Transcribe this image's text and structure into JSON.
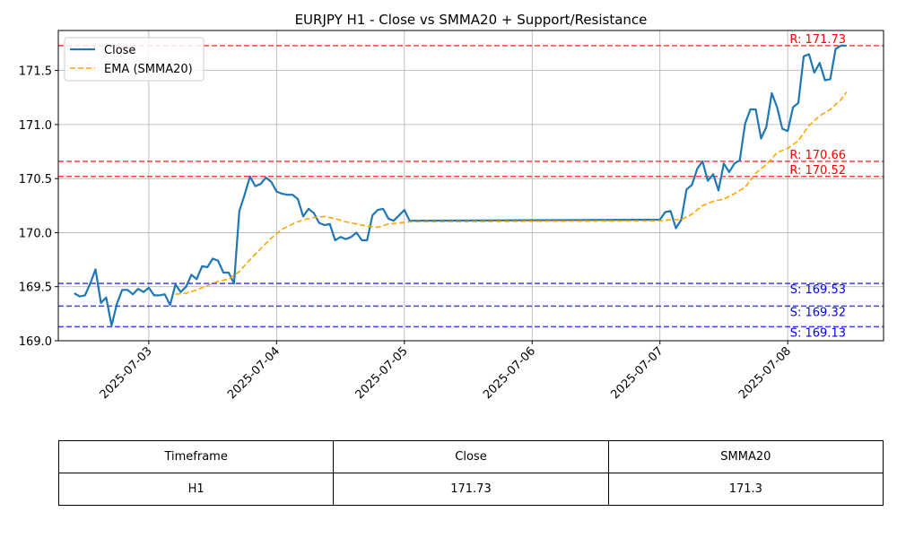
{
  "chart_data": {
    "type": "line",
    "title": "EURJPY H1 - Close vs SMMA20 + Support/Resistance",
    "xlabel": "",
    "ylabel": "",
    "x_ticks": [
      "2025-07-03",
      "2025-07-04",
      "2025-07-05",
      "2025-07-06",
      "2025-07-07",
      "2025-07-08"
    ],
    "y_ticks": [
      "169.0",
      "169.5",
      "170.0",
      "170.5",
      "171.0",
      "171.5"
    ],
    "ylim": [
      169.0,
      171.87
    ],
    "xlim": [
      "2025-07-02 07:00",
      "2025-07-08 18:00"
    ],
    "grid": true,
    "legend_position": "upper-left",
    "series": [
      {
        "name": "Close",
        "color": "#1f77b4",
        "style": "solid",
        "points": [
          [
            "2025-07-02 10:00",
            169.44
          ],
          [
            "2025-07-02 11:00",
            169.41
          ],
          [
            "2025-07-02 12:00",
            169.42
          ],
          [
            "2025-07-02 13:00",
            169.53
          ],
          [
            "2025-07-02 14:00",
            169.66
          ],
          [
            "2025-07-02 15:00",
            169.35
          ],
          [
            "2025-07-02 16:00",
            169.4
          ],
          [
            "2025-07-02 17:00",
            169.14
          ],
          [
            "2025-07-02 18:00",
            169.34
          ],
          [
            "2025-07-02 19:00",
            169.47
          ],
          [
            "2025-07-02 20:00",
            169.47
          ],
          [
            "2025-07-02 21:00",
            169.43
          ],
          [
            "2025-07-02 22:00",
            169.48
          ],
          [
            "2025-07-02 23:00",
            169.45
          ],
          [
            "2025-07-03 00:00",
            169.49
          ],
          [
            "2025-07-03 01:00",
            169.42
          ],
          [
            "2025-07-03 02:00",
            169.42
          ],
          [
            "2025-07-03 03:00",
            169.43
          ],
          [
            "2025-07-03 04:00",
            169.33
          ],
          [
            "2025-07-03 05:00",
            169.52
          ],
          [
            "2025-07-03 06:00",
            169.45
          ],
          [
            "2025-07-03 07:00",
            169.5
          ],
          [
            "2025-07-03 08:00",
            169.61
          ],
          [
            "2025-07-03 09:00",
            169.57
          ],
          [
            "2025-07-03 10:00",
            169.69
          ],
          [
            "2025-07-03 11:00",
            169.68
          ],
          [
            "2025-07-03 12:00",
            169.76
          ],
          [
            "2025-07-03 13:00",
            169.74
          ],
          [
            "2025-07-03 14:00",
            169.63
          ],
          [
            "2025-07-03 15:00",
            169.63
          ],
          [
            "2025-07-03 16:00",
            169.53
          ],
          [
            "2025-07-03 17:00",
            170.2
          ],
          [
            "2025-07-03 18:00",
            170.35
          ],
          [
            "2025-07-03 19:00",
            170.52
          ],
          [
            "2025-07-03 20:00",
            170.43
          ],
          [
            "2025-07-03 21:00",
            170.45
          ],
          [
            "2025-07-03 22:00",
            170.51
          ],
          [
            "2025-07-03 23:00",
            170.47
          ],
          [
            "2025-07-04 00:00",
            170.38
          ],
          [
            "2025-07-04 01:00",
            170.36
          ],
          [
            "2025-07-04 02:00",
            170.35
          ],
          [
            "2025-07-04 03:00",
            170.35
          ],
          [
            "2025-07-04 04:00",
            170.31
          ],
          [
            "2025-07-04 05:00",
            170.15
          ],
          [
            "2025-07-04 06:00",
            170.22
          ],
          [
            "2025-07-04 07:00",
            170.18
          ],
          [
            "2025-07-04 08:00",
            170.09
          ],
          [
            "2025-07-04 09:00",
            170.07
          ],
          [
            "2025-07-04 10:00",
            170.08
          ],
          [
            "2025-07-04 11:00",
            169.93
          ],
          [
            "2025-07-04 12:00",
            169.96
          ],
          [
            "2025-07-04 13:00",
            169.94
          ],
          [
            "2025-07-04 14:00",
            169.96
          ],
          [
            "2025-07-04 15:00",
            170.0
          ],
          [
            "2025-07-04 16:00",
            169.93
          ],
          [
            "2025-07-04 17:00",
            169.93
          ],
          [
            "2025-07-04 18:00",
            170.16
          ],
          [
            "2025-07-04 19:00",
            170.21
          ],
          [
            "2025-07-04 20:00",
            170.22
          ],
          [
            "2025-07-04 21:00",
            170.13
          ],
          [
            "2025-07-04 22:00",
            170.11
          ],
          [
            "2025-07-04 23:00",
            170.16
          ],
          [
            "2025-07-05 00:00",
            170.21
          ],
          [
            "2025-07-05 01:00",
            170.11
          ],
          [
            "2025-07-07 00:00",
            170.12
          ],
          [
            "2025-07-07 01:00",
            170.19
          ],
          [
            "2025-07-07 02:00",
            170.2
          ],
          [
            "2025-07-07 03:00",
            170.04
          ],
          [
            "2025-07-07 04:00",
            170.12
          ],
          [
            "2025-07-07 05:00",
            170.4
          ],
          [
            "2025-07-07 06:00",
            170.44
          ],
          [
            "2025-07-07 07:00",
            170.59
          ],
          [
            "2025-07-07 08:00",
            170.66
          ],
          [
            "2025-07-07 09:00",
            170.48
          ],
          [
            "2025-07-07 10:00",
            170.54
          ],
          [
            "2025-07-07 11:00",
            170.39
          ],
          [
            "2025-07-07 12:00",
            170.64
          ],
          [
            "2025-07-07 13:00",
            170.56
          ],
          [
            "2025-07-07 14:00",
            170.64
          ],
          [
            "2025-07-07 15:00",
            170.67
          ],
          [
            "2025-07-07 16:00",
            171.01
          ],
          [
            "2025-07-07 17:00",
            171.14
          ],
          [
            "2025-07-07 18:00",
            171.14
          ],
          [
            "2025-07-07 19:00",
            170.87
          ],
          [
            "2025-07-07 20:00",
            170.98
          ],
          [
            "2025-07-07 21:00",
            171.29
          ],
          [
            "2025-07-07 22:00",
            171.16
          ],
          [
            "2025-07-07 23:00",
            170.96
          ],
          [
            "2025-07-08 00:00",
            170.94
          ],
          [
            "2025-07-08 01:00",
            171.16
          ],
          [
            "2025-07-08 02:00",
            171.2
          ],
          [
            "2025-07-08 03:00",
            171.63
          ],
          [
            "2025-07-08 04:00",
            171.65
          ],
          [
            "2025-07-08 05:00",
            171.48
          ],
          [
            "2025-07-08 06:00",
            171.57
          ],
          [
            "2025-07-08 07:00",
            171.41
          ],
          [
            "2025-07-08 08:00",
            171.42
          ],
          [
            "2025-07-08 09:00",
            171.7
          ],
          [
            "2025-07-08 10:00",
            171.73
          ],
          [
            "2025-07-08 11:00",
            171.73
          ]
        ]
      },
      {
        "name": "EMA (SMMA20)",
        "color": "#ffa500",
        "style": "dashed",
        "points": [
          [
            "2025-07-03 05:00",
            169.43
          ],
          [
            "2025-07-03 07:00",
            169.44
          ],
          [
            "2025-07-03 09:00",
            169.47
          ],
          [
            "2025-07-03 11:00",
            169.51
          ],
          [
            "2025-07-03 13:00",
            169.55
          ],
          [
            "2025-07-03 15:00",
            169.57
          ],
          [
            "2025-07-03 17:00",
            169.64
          ],
          [
            "2025-07-03 19:00",
            169.75
          ],
          [
            "2025-07-03 21:00",
            169.85
          ],
          [
            "2025-07-03 23:00",
            169.95
          ],
          [
            "2025-07-04 01:00",
            170.03
          ],
          [
            "2025-07-04 03:00",
            170.08
          ],
          [
            "2025-07-04 05:00",
            170.12
          ],
          [
            "2025-07-04 07:00",
            170.14
          ],
          [
            "2025-07-04 09:00",
            170.15
          ],
          [
            "2025-07-04 11:00",
            170.13
          ],
          [
            "2025-07-04 13:00",
            170.1
          ],
          [
            "2025-07-04 15:00",
            170.08
          ],
          [
            "2025-07-04 17:00",
            170.06
          ],
          [
            "2025-07-04 19:00",
            170.05
          ],
          [
            "2025-07-04 21:00",
            170.08
          ],
          [
            "2025-07-04 23:00",
            170.09
          ],
          [
            "2025-07-05 01:00",
            170.1
          ],
          [
            "2025-07-07 00:00",
            170.11
          ],
          [
            "2025-07-07 02:00",
            170.12
          ],
          [
            "2025-07-07 04:00",
            170.12
          ],
          [
            "2025-07-07 06:00",
            170.17
          ],
          [
            "2025-07-07 08:00",
            170.25
          ],
          [
            "2025-07-07 10:00",
            170.29
          ],
          [
            "2025-07-07 12:00",
            170.31
          ],
          [
            "2025-07-07 14:00",
            170.36
          ],
          [
            "2025-07-07 16:00",
            170.42
          ],
          [
            "2025-07-07 18:00",
            170.55
          ],
          [
            "2025-07-07 20:00",
            170.63
          ],
          [
            "2025-07-07 22:00",
            170.74
          ],
          [
            "2025-07-08 00:00",
            170.78
          ],
          [
            "2025-07-08 02:00",
            170.85
          ],
          [
            "2025-07-08 04:00",
            170.99
          ],
          [
            "2025-07-08 06:00",
            171.08
          ],
          [
            "2025-07-08 08:00",
            171.14
          ],
          [
            "2025-07-08 10:00",
            171.23
          ],
          [
            "2025-07-08 11:00",
            171.3
          ]
        ]
      }
    ],
    "levels": [
      {
        "kind": "resistance",
        "value": 171.73,
        "label": "R: 171.73",
        "color": "#ff0000"
      },
      {
        "kind": "resistance",
        "value": 170.66,
        "label": "R: 170.66",
        "color": "#ff0000"
      },
      {
        "kind": "resistance",
        "value": 170.52,
        "label": "R: 170.52",
        "color": "#ff0000"
      },
      {
        "kind": "support",
        "value": 169.53,
        "label": "S: 169.53",
        "color": "#0000ff"
      },
      {
        "kind": "support",
        "value": 169.32,
        "label": "S: 169.32",
        "color": "#0000ff"
      },
      {
        "kind": "support",
        "value": 169.13,
        "label": "S: 169.13",
        "color": "#0000ff"
      }
    ]
  },
  "table": {
    "headers": [
      "Timeframe",
      "Close",
      "SMMA20"
    ],
    "row": [
      "H1",
      "171.73",
      "171.3"
    ]
  }
}
